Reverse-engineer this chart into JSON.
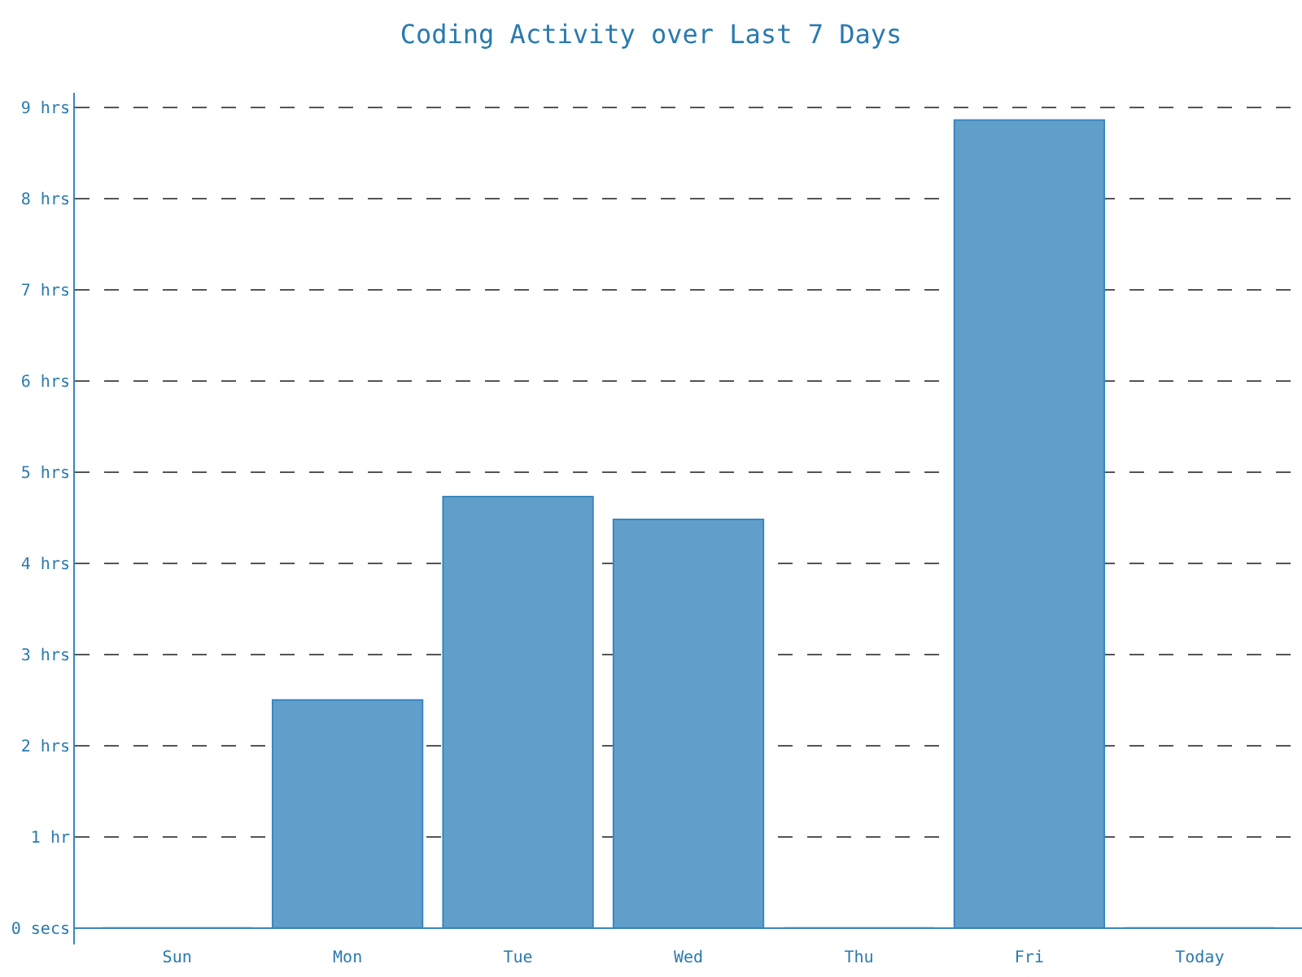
{
  "chart_data": {
    "type": "bar",
    "title": "Coding Activity over Last 7 Days",
    "categories": [
      "Sun",
      "Mon",
      "Tue",
      "Wed",
      "Thu",
      "Fri",
      "Today"
    ],
    "values": [
      0,
      2.5,
      4.73,
      4.48,
      0,
      8.86,
      0
    ],
    "color": "#619fcb",
    "ylim": [
      -0.18,
      9.16
    ],
    "yticks": [
      {
        "value": 0,
        "label": "0 secs"
      },
      {
        "value": 1,
        "label": "1 hr"
      },
      {
        "value": 2,
        "label": "2 hrs"
      },
      {
        "value": 3,
        "label": "3 hrs"
      },
      {
        "value": 4,
        "label": "4 hrs"
      },
      {
        "value": 5,
        "label": "5 hrs"
      },
      {
        "value": 6,
        "label": "6 hrs"
      },
      {
        "value": 7,
        "label": "7 hrs"
      },
      {
        "value": 8,
        "label": "8 hrs"
      },
      {
        "value": 9,
        "label": "9 hrs"
      }
    ],
    "grid": "y",
    "line_style": "dashed",
    "legend": false
  }
}
